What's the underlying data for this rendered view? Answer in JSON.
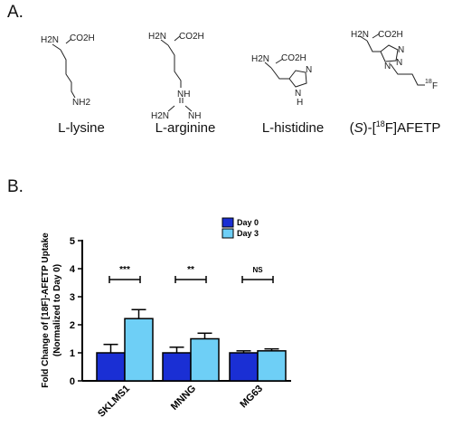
{
  "panel_a": {
    "label": "A.",
    "compounds": [
      {
        "name": "L-lysine",
        "carboxyl": "CO2H",
        "amine": "H2N",
        "side_terminal": "NH2"
      },
      {
        "name": "L-arginine",
        "carboxyl": "CO2H",
        "amine": "H2N",
        "nh": "NH",
        "nh_left": "H2N",
        "nh_right": "NH"
      },
      {
        "name": "L-histidine",
        "carboxyl": "CO2H",
        "amine": "H2N",
        "ring_n": "N",
        "ring_nh": "N",
        "ring_h": "H"
      },
      {
        "name_pre": "(",
        "name_s": "S",
        "name_mid": ")-[",
        "name_sup": "18",
        "name_post": "F]AFETP",
        "carboxyl": "CO2H",
        "amine": "H2N",
        "ring_n1": "N",
        "ring_n2": "N",
        "ring_n3": "N",
        "fluor_sup": "18",
        "fluor": "F"
      }
    ]
  },
  "panel_b": {
    "label": "B."
  },
  "colors": {
    "day0": "#1a2fd4",
    "day3": "#6ecff6",
    "axis": "#000000"
  },
  "chart_data": {
    "type": "bar",
    "categories": [
      "SKLMS1",
      "MNNG",
      "MG63"
    ],
    "series": [
      {
        "name": "Day 0",
        "values": [
          1.0,
          1.0,
          1.0
        ],
        "errors": [
          0.3,
          0.2,
          0.07
        ]
      },
      {
        "name": "Day 3",
        "values": [
          2.22,
          1.5,
          1.07
        ],
        "errors": [
          0.32,
          0.2,
          0.07
        ]
      }
    ],
    "ylabel_line1": "Fold Change of [18F]-AFETP  Uptake",
    "ylabel_line2": "(Normalized to Day 0)",
    "ylim": [
      0,
      5
    ],
    "yticks": [
      0,
      1,
      2,
      3,
      4,
      5
    ],
    "significance": [
      "***",
      "**",
      "NS"
    ],
    "legend_position": "top"
  }
}
